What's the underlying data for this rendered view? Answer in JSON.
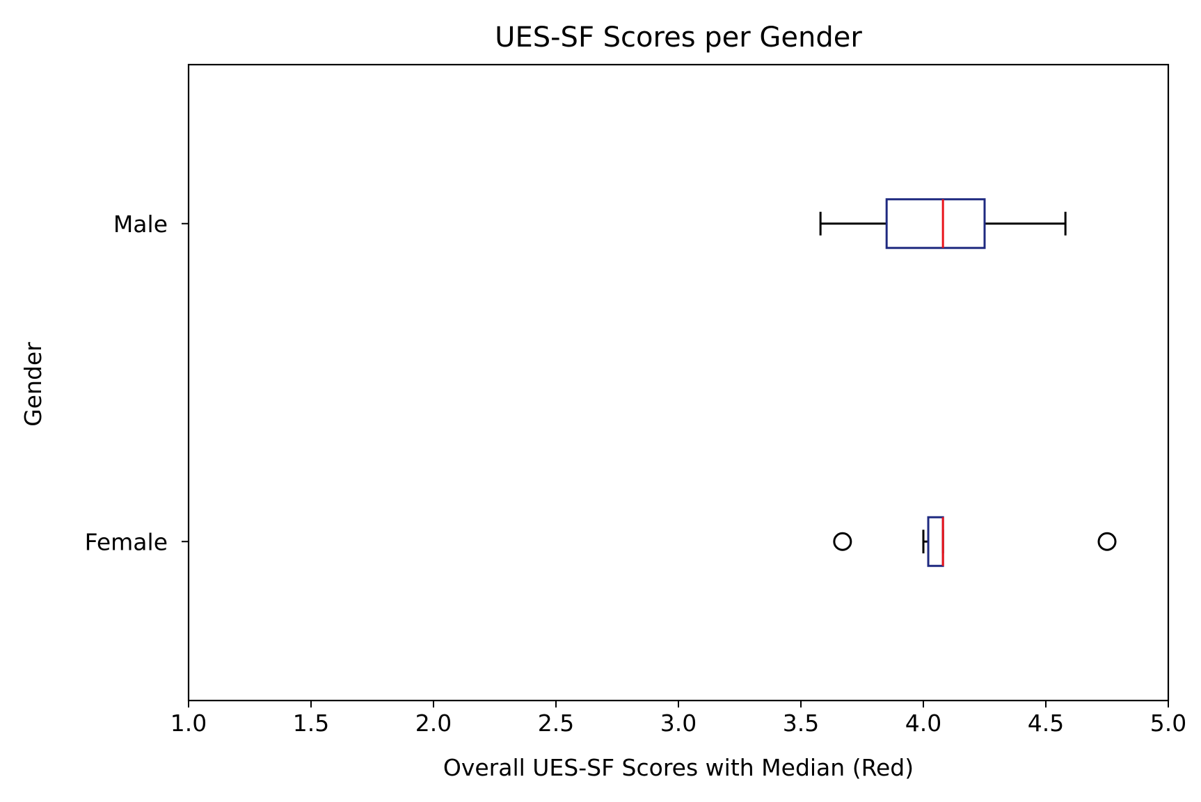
{
  "chart_data": {
    "type": "boxplot",
    "orientation": "horizontal",
    "title": "UES-SF Scores per Gender",
    "xlabel": "Overall UES-SF Scores with Median (Red)",
    "ylabel": "Gender",
    "xlim": [
      1.0,
      5.0
    ],
    "xticks": [
      "1.0",
      "1.5",
      "2.0",
      "2.5",
      "3.0",
      "3.5",
      "4.0",
      "4.5",
      "5.0"
    ],
    "categories": [
      "Female",
      "Male"
    ],
    "boxes": [
      {
        "category": "Female",
        "whisker_low": 4.0,
        "q1": 4.02,
        "median": 4.08,
        "q3": 4.08,
        "whisker_high": 4.08,
        "outliers": [
          3.67,
          4.75
        ]
      },
      {
        "category": "Male",
        "whisker_low": 3.58,
        "q1": 3.85,
        "median": 4.08,
        "q3": 4.25,
        "whisker_high": 4.58,
        "outliers": []
      }
    ],
    "grid": false,
    "colors": {
      "box": "#1f2a80",
      "median": "#e8141b",
      "whisker": "#000000",
      "outlier": "#000000"
    }
  }
}
